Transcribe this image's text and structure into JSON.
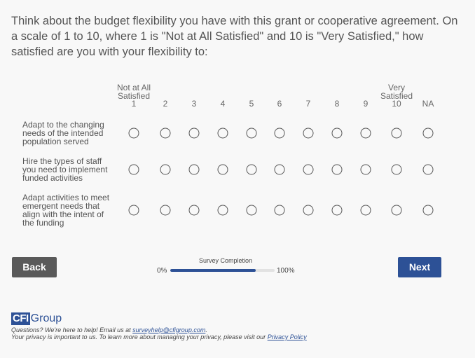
{
  "question": {
    "text": "Think about the budget flexibility you have with this grant or cooperative agreement. On a scale of 1 to 10, where 1 is \"Not at All Satisfied\" and 10 is \"Very Satisfied,\" how satisfied are you with your flexibility to:"
  },
  "scale": {
    "columns": [
      {
        "top": "Not at All",
        "mid": "Satisfied",
        "value": "1"
      },
      {
        "value": "2"
      },
      {
        "value": "3"
      },
      {
        "value": "4"
      },
      {
        "value": "5"
      },
      {
        "value": "6"
      },
      {
        "value": "7"
      },
      {
        "value": "8"
      },
      {
        "value": "9"
      },
      {
        "top": "Very",
        "mid": "Satisfied",
        "value": "10"
      },
      {
        "value": "NA"
      }
    ],
    "rows": [
      {
        "label_lines": [
          "Adapt to the changing",
          "needs of the intended",
          "population served"
        ]
      },
      {
        "label_lines": [
          "Hire the types of staff",
          "you need to implement",
          "funded activities"
        ]
      },
      {
        "label_lines": [
          "Adapt activities to meet",
          "emergent needs that",
          "align with the intent of",
          "the funding"
        ]
      }
    ]
  },
  "nav": {
    "back_label": "Back",
    "next_label": "Next"
  },
  "progress": {
    "label": "Survey Completion",
    "min_label": "0%",
    "max_label": "100%",
    "fraction": 0.82
  },
  "footer": {
    "logo_box": "CFI",
    "logo_text": "Group",
    "help_text": "Questions? We're here to help! Email us at ",
    "help_email": "surveyhelp@cfigroup.com",
    "help_end": ".",
    "privacy_text": "Your privacy is important to us. To learn more about managing your privacy, please visit our ",
    "privacy_link": "Privacy Policy"
  },
  "colors": {
    "accent": "#2d5196",
    "back_button": "#5a5a5a"
  }
}
